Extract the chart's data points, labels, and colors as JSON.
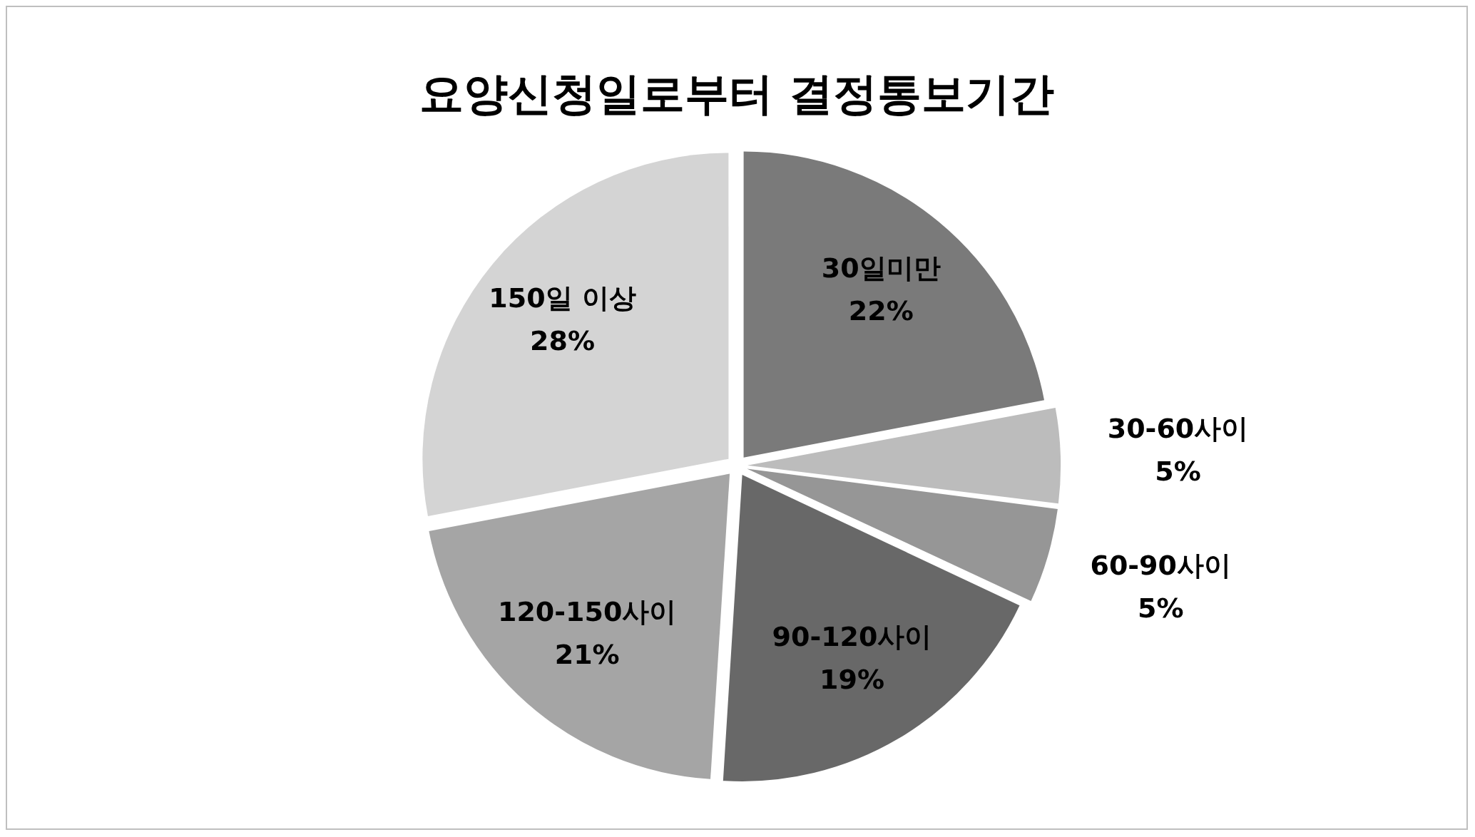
{
  "chart_data": {
    "type": "pie",
    "title": "요양신청일로부터 결정통보기간",
    "categories": [
      "30일미만",
      "30-60사이",
      "60-90사이",
      "90-120사이",
      "120-150사이",
      "150일 이상"
    ],
    "values": [
      22,
      5,
      5,
      19,
      21,
      28
    ],
    "value_labels": [
      "22%",
      "5%",
      "5%",
      "19%",
      "21%",
      "28%"
    ],
    "colors": [
      "#7a7a7a",
      "#bcbcbc",
      "#969696",
      "#686868",
      "#a5a5a5",
      "#d4d4d4"
    ],
    "legend": false
  }
}
